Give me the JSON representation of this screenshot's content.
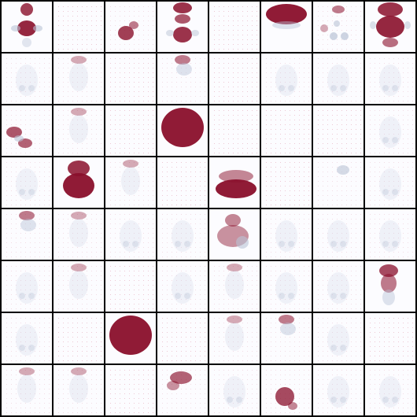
{
  "colors": {
    "background": "#fcfcff",
    "grid_line": "#000000",
    "strong": "#8a0f2b",
    "faint": "#b9c3d6",
    "stipple": "#e8b9c9"
  },
  "tiles": [
    "shape-top-cross",
    "faint-dots",
    "blob-left-small",
    "shape-double-cross",
    "faint-dots",
    "blob-wide-top",
    "scatter-corner",
    "shape-full-cross",
    "faint-ghost",
    "faint-top",
    "faint-dots",
    "faint-top-dark",
    "faint-dots",
    "faint-ghost",
    "faint-ghost",
    "faint-ghost",
    "scatter-left",
    "faint-top",
    "faint-dots",
    "blob-large-round",
    "faint-dots",
    "faint-dots",
    "faint-dots",
    "faint-ghost",
    "faint-ghost",
    "blob-tall-center",
    "faint-top",
    "faint-dots",
    "blob-bowl",
    "faint-dots",
    "faint-blob-soft",
    "faint-ghost",
    "faint-top-dark",
    "faint-top",
    "faint-ghost",
    "faint-ghost",
    "scatter-center",
    "faint-ghost",
    "faint-ghost",
    "faint-ghost",
    "faint-ghost",
    "faint-top",
    "faint-dots",
    "faint-ghost",
    "faint-top",
    "faint-ghost",
    "faint-ghost",
    "blob-tall-right",
    "faint-ghost",
    "faint-dots",
    "blob-large-round",
    "faint-dots",
    "faint-top",
    "faint-top-dark",
    "faint-ghost",
    "faint-dots",
    "faint-top",
    "faint-top",
    "faint-dots",
    "scatter-diag",
    "faint-ghost",
    "scatter-bottom",
    "faint-ghost",
    "faint-ghost"
  ]
}
